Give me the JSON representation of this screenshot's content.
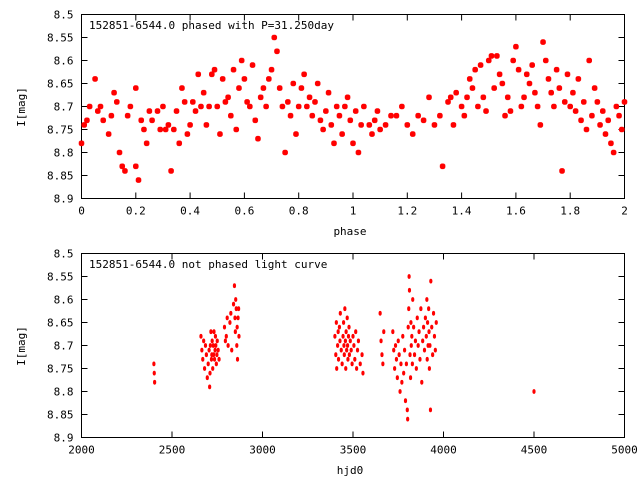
{
  "chart_data": [
    {
      "type": "scatter",
      "title": "152851-6544.0 phased with P=31.250day",
      "xlabel": "phase",
      "ylabel": "I[mag]",
      "xlim": [
        0,
        2
      ],
      "ylim": [
        8.5,
        8.9
      ],
      "y_inverted": true,
      "grid": false,
      "marker_color": "#ff0000",
      "xticks": [
        "0",
        "0.2",
        "0.4",
        "0.6",
        "0.8",
        "1",
        "1.2",
        "1.4",
        "1.6",
        "1.8",
        "2"
      ],
      "yticks": [
        "8.5",
        "8.55",
        "8.6",
        "8.65",
        "8.7",
        "8.75",
        "8.8",
        "8.85",
        "8.9"
      ],
      "points": [
        [
          0.0,
          8.78
        ],
        [
          0.01,
          8.74
        ],
        [
          0.02,
          8.73
        ],
        [
          0.03,
          8.7
        ],
        [
          0.05,
          8.64
        ],
        [
          0.06,
          8.71
        ],
        [
          0.07,
          8.7
        ],
        [
          0.08,
          8.73
        ],
        [
          0.1,
          8.76
        ],
        [
          0.11,
          8.72
        ],
        [
          0.12,
          8.67
        ],
        [
          0.13,
          8.69
        ],
        [
          0.14,
          8.8
        ],
        [
          0.15,
          8.83
        ],
        [
          0.16,
          8.84
        ],
        [
          0.17,
          8.72
        ],
        [
          0.18,
          8.7
        ],
        [
          0.2,
          8.66
        ],
        [
          0.2,
          8.83
        ],
        [
          0.21,
          8.86
        ],
        [
          0.22,
          8.73
        ],
        [
          0.23,
          8.75
        ],
        [
          0.24,
          8.78
        ],
        [
          0.25,
          8.71
        ],
        [
          0.26,
          8.73
        ],
        [
          0.28,
          8.71
        ],
        [
          0.29,
          8.75
        ],
        [
          0.3,
          8.7
        ],
        [
          0.31,
          8.75
        ],
        [
          0.32,
          8.74
        ],
        [
          0.33,
          8.84
        ],
        [
          0.34,
          8.75
        ],
        [
          0.35,
          8.71
        ],
        [
          0.36,
          8.78
        ],
        [
          0.37,
          8.66
        ],
        [
          0.38,
          8.69
        ],
        [
          0.39,
          8.76
        ],
        [
          0.4,
          8.74
        ],
        [
          0.41,
          8.69
        ],
        [
          0.42,
          8.71
        ],
        [
          0.43,
          8.63
        ],
        [
          0.44,
          8.7
        ],
        [
          0.45,
          8.67
        ],
        [
          0.46,
          8.74
        ],
        [
          0.47,
          8.7
        ],
        [
          0.48,
          8.63
        ],
        [
          0.49,
          8.62
        ],
        [
          0.5,
          8.7
        ],
        [
          0.51,
          8.76
        ],
        [
          0.52,
          8.64
        ],
        [
          0.53,
          8.69
        ],
        [
          0.54,
          8.68
        ],
        [
          0.55,
          8.72
        ],
        [
          0.56,
          8.62
        ],
        [
          0.57,
          8.75
        ],
        [
          0.58,
          8.66
        ],
        [
          0.59,
          8.6
        ],
        [
          0.6,
          8.64
        ],
        [
          0.61,
          8.69
        ],
        [
          0.62,
          8.7
        ],
        [
          0.63,
          8.61
        ],
        [
          0.64,
          8.73
        ],
        [
          0.65,
          8.77
        ],
        [
          0.66,
          8.68
        ],
        [
          0.67,
          8.66
        ],
        [
          0.68,
          8.7
        ],
        [
          0.69,
          8.64
        ],
        [
          0.7,
          8.62
        ],
        [
          0.71,
          8.55
        ],
        [
          0.72,
          8.58
        ],
        [
          0.73,
          8.66
        ],
        [
          0.74,
          8.7
        ],
        [
          0.75,
          8.8
        ],
        [
          0.76,
          8.69
        ],
        [
          0.77,
          8.72
        ],
        [
          0.78,
          8.65
        ],
        [
          0.79,
          8.76
        ],
        [
          0.8,
          8.7
        ],
        [
          0.81,
          8.66
        ],
        [
          0.82,
          8.63
        ],
        [
          0.83,
          8.7
        ],
        [
          0.84,
          8.68
        ],
        [
          0.85,
          8.72
        ],
        [
          0.86,
          8.69
        ],
        [
          0.87,
          8.65
        ],
        [
          0.88,
          8.73
        ],
        [
          0.89,
          8.75
        ],
        [
          0.9,
          8.71
        ],
        [
          0.91,
          8.67
        ],
        [
          0.92,
          8.74
        ],
        [
          0.93,
          8.78
        ],
        [
          0.94,
          8.7
        ],
        [
          0.95,
          8.72
        ],
        [
          0.96,
          8.76
        ],
        [
          0.97,
          8.7
        ],
        [
          0.98,
          8.68
        ],
        [
          0.99,
          8.73
        ],
        [
          1.0,
          8.78
        ],
        [
          1.01,
          8.71
        ],
        [
          1.02,
          8.8
        ],
        [
          1.03,
          8.74
        ],
        [
          1.04,
          8.7
        ],
        [
          1.06,
          8.74
        ],
        [
          1.07,
          8.76
        ],
        [
          1.08,
          8.73
        ],
        [
          1.09,
          8.71
        ],
        [
          1.1,
          8.75
        ],
        [
          1.12,
          8.74
        ],
        [
          1.14,
          8.72
        ],
        [
          1.16,
          8.72
        ],
        [
          1.18,
          8.7
        ],
        [
          1.2,
          8.74
        ],
        [
          1.22,
          8.76
        ],
        [
          1.24,
          8.72
        ],
        [
          1.26,
          8.73
        ],
        [
          1.28,
          8.68
        ],
        [
          1.3,
          8.74
        ],
        [
          1.32,
          8.72
        ],
        [
          1.33,
          8.83
        ],
        [
          1.35,
          8.69
        ],
        [
          1.36,
          8.68
        ],
        [
          1.37,
          8.74
        ],
        [
          1.38,
          8.67
        ],
        [
          1.4,
          8.7
        ],
        [
          1.41,
          8.72
        ],
        [
          1.42,
          8.68
        ],
        [
          1.43,
          8.64
        ],
        [
          1.44,
          8.66
        ],
        [
          1.45,
          8.62
        ],
        [
          1.46,
          8.7
        ],
        [
          1.47,
          8.61
        ],
        [
          1.48,
          8.68
        ],
        [
          1.49,
          8.71
        ],
        [
          1.5,
          8.6
        ],
        [
          1.51,
          8.59
        ],
        [
          1.52,
          8.66
        ],
        [
          1.53,
          8.59
        ],
        [
          1.54,
          8.63
        ],
        [
          1.55,
          8.65
        ],
        [
          1.56,
          8.72
        ],
        [
          1.57,
          8.68
        ],
        [
          1.58,
          8.71
        ],
        [
          1.59,
          8.6
        ],
        [
          1.6,
          8.57
        ],
        [
          1.61,
          8.62
        ],
        [
          1.62,
          8.7
        ],
        [
          1.63,
          8.68
        ],
        [
          1.64,
          8.63
        ],
        [
          1.65,
          8.65
        ],
        [
          1.66,
          8.61
        ],
        [
          1.67,
          8.67
        ],
        [
          1.68,
          8.7
        ],
        [
          1.69,
          8.74
        ],
        [
          1.7,
          8.56
        ],
        [
          1.71,
          8.6
        ],
        [
          1.72,
          8.64
        ],
        [
          1.73,
          8.67
        ],
        [
          1.74,
          8.7
        ],
        [
          1.75,
          8.62
        ],
        [
          1.76,
          8.66
        ],
        [
          1.77,
          8.84
        ],
        [
          1.78,
          8.69
        ],
        [
          1.79,
          8.63
        ],
        [
          1.8,
          8.7
        ],
        [
          1.81,
          8.67
        ],
        [
          1.82,
          8.71
        ],
        [
          1.83,
          8.64
        ],
        [
          1.84,
          8.73
        ],
        [
          1.85,
          8.69
        ],
        [
          1.86,
          8.75
        ],
        [
          1.87,
          8.6
        ],
        [
          1.88,
          8.72
        ],
        [
          1.89,
          8.66
        ],
        [
          1.9,
          8.69
        ],
        [
          1.91,
          8.74
        ],
        [
          1.92,
          8.71
        ],
        [
          1.93,
          8.76
        ],
        [
          1.94,
          8.73
        ],
        [
          1.95,
          8.78
        ],
        [
          1.96,
          8.8
        ],
        [
          1.97,
          8.7
        ],
        [
          1.98,
          8.72
        ],
        [
          1.99,
          8.75
        ],
        [
          2.0,
          8.69
        ]
      ]
    },
    {
      "type": "scatter",
      "title": "152851-6544.0 not phased light curve",
      "xlabel": "hjd0",
      "ylabel": "I[mag]",
      "xlim": [
        2000,
        5000
      ],
      "ylim": [
        8.5,
        8.9
      ],
      "y_inverted": true,
      "grid": false,
      "marker_color": "#ff0000",
      "xticks": [
        "2000",
        "2500",
        "3000",
        "3500",
        "4000",
        "4500",
        "5000"
      ],
      "yticks": [
        "8.5",
        "8.55",
        "8.6",
        "8.65",
        "8.7",
        "8.75",
        "8.8",
        "8.85",
        "8.9"
      ],
      "points": [
        [
          2400,
          8.74
        ],
        [
          2402,
          8.76
        ],
        [
          2404,
          8.78
        ],
        [
          2660,
          8.68
        ],
        [
          2665,
          8.71
        ],
        [
          2670,
          8.73
        ],
        [
          2675,
          8.69
        ],
        [
          2680,
          8.75
        ],
        [
          2685,
          8.7
        ],
        [
          2690,
          8.72
        ],
        [
          2695,
          8.77
        ],
        [
          2700,
          8.74
        ],
        [
          2705,
          8.71
        ],
        [
          2708,
          8.79
        ],
        [
          2710,
          8.76
        ],
        [
          2712,
          8.7
        ],
        [
          2715,
          8.67
        ],
        [
          2718,
          8.73
        ],
        [
          2720,
          8.72
        ],
        [
          2722,
          8.69
        ],
        [
          2725,
          8.75
        ],
        [
          2728,
          8.7
        ],
        [
          2730,
          8.72
        ],
        [
          2732,
          8.67
        ],
        [
          2735,
          8.73
        ],
        [
          2738,
          8.71
        ],
        [
          2740,
          8.68
        ],
        [
          2742,
          8.7
        ],
        [
          2745,
          8.74
        ],
        [
          2748,
          8.72
        ],
        [
          2750,
          8.69
        ],
        [
          2755,
          8.71
        ],
        [
          2760,
          8.73
        ],
        [
          2790,
          8.66
        ],
        [
          2795,
          8.69
        ],
        [
          2800,
          8.68
        ],
        [
          2805,
          8.64
        ],
        [
          2810,
          8.7
        ],
        [
          2820,
          8.65
        ],
        [
          2825,
          8.63
        ],
        [
          2830,
          8.71
        ],
        [
          2840,
          8.61
        ],
        [
          2845,
          8.57
        ],
        [
          2848,
          8.64
        ],
        [
          2850,
          8.67
        ],
        [
          2852,
          8.6
        ],
        [
          2855,
          8.62
        ],
        [
          2858,
          8.7
        ],
        [
          2860,
          8.66
        ],
        [
          2862,
          8.73
        ],
        [
          2865,
          8.64
        ],
        [
          2868,
          8.62
        ],
        [
          2870,
          8.68
        ],
        [
          3400,
          8.68
        ],
        [
          3405,
          8.72
        ],
        [
          3408,
          8.65
        ],
        [
          3410,
          8.75
        ],
        [
          3415,
          8.7
        ],
        [
          3418,
          8.67
        ],
        [
          3420,
          8.73
        ],
        [
          3425,
          8.66
        ],
        [
          3428,
          8.69
        ],
        [
          3430,
          8.63
        ],
        [
          3435,
          8.71
        ],
        [
          3440,
          8.74
        ],
        [
          3445,
          8.68
        ],
        [
          3448,
          8.65
        ],
        [
          3450,
          8.7
        ],
        [
          3452,
          8.72
        ],
        [
          3455,
          8.62
        ],
        [
          3458,
          8.69
        ],
        [
          3460,
          8.75
        ],
        [
          3462,
          8.67
        ],
        [
          3465,
          8.71
        ],
        [
          3468,
          8.64
        ],
        [
          3470,
          8.7
        ],
        [
          3472,
          8.73
        ],
        [
          3475,
          8.68
        ],
        [
          3478,
          8.66
        ],
        [
          3480,
          8.72
        ],
        [
          3485,
          8.69
        ],
        [
          3490,
          8.71
        ],
        [
          3495,
          8.74
        ],
        [
          3500,
          8.68
        ],
        [
          3505,
          8.7
        ],
        [
          3510,
          8.73
        ],
        [
          3515,
          8.67
        ],
        [
          3520,
          8.75
        ],
        [
          3525,
          8.71
        ],
        [
          3530,
          8.69
        ],
        [
          3540,
          8.74
        ],
        [
          3550,
          8.72
        ],
        [
          3555,
          8.76
        ],
        [
          3650,
          8.63
        ],
        [
          3655,
          8.69
        ],
        [
          3660,
          8.72
        ],
        [
          3665,
          8.74
        ],
        [
          3670,
          8.67
        ],
        [
          3720,
          8.67
        ],
        [
          3725,
          8.71
        ],
        [
          3730,
          8.75
        ],
        [
          3735,
          8.7
        ],
        [
          3740,
          8.73
        ],
        [
          3745,
          8.77
        ],
        [
          3750,
          8.69
        ],
        [
          3755,
          8.72
        ],
        [
          3760,
          8.8
        ],
        [
          3765,
          8.74
        ],
        [
          3770,
          8.78
        ],
        [
          3775,
          8.68
        ],
        [
          3780,
          8.76
        ],
        [
          3785,
          8.71
        ],
        [
          3790,
          8.82
        ],
        [
          3795,
          8.74
        ],
        [
          3800,
          8.84
        ],
        [
          3802,
          8.86
        ],
        [
          3805,
          8.66
        ],
        [
          3808,
          8.62
        ],
        [
          3810,
          8.55
        ],
        [
          3812,
          8.58
        ],
        [
          3815,
          8.72
        ],
        [
          3818,
          8.77
        ],
        [
          3820,
          8.65
        ],
        [
          3822,
          8.7
        ],
        [
          3825,
          8.68
        ],
        [
          3828,
          8.74
        ],
        [
          3830,
          8.6
        ],
        [
          3835,
          8.66
        ],
        [
          3840,
          8.72
        ],
        [
          3845,
          8.69
        ],
        [
          3850,
          8.75
        ],
        [
          3855,
          8.64
        ],
        [
          3860,
          8.7
        ],
        [
          3865,
          8.67
        ],
        [
          3870,
          8.73
        ],
        [
          3875,
          8.62
        ],
        [
          3880,
          8.78
        ],
        [
          3885,
          8.69
        ],
        [
          3890,
          8.66
        ],
        [
          3895,
          8.71
        ],
        [
          3900,
          8.64
        ],
        [
          3905,
          8.68
        ],
        [
          3908,
          8.6
        ],
        [
          3910,
          8.73
        ],
        [
          3912,
          8.65
        ],
        [
          3915,
          8.7
        ],
        [
          3918,
          8.62
        ],
        [
          3920,
          8.67
        ],
        [
          3922,
          8.75
        ],
        [
          3925,
          8.7
        ],
        [
          3928,
          8.84
        ],
        [
          3930,
          8.56
        ],
        [
          3935,
          8.66
        ],
        [
          3940,
          8.72
        ],
        [
          3945,
          8.63
        ],
        [
          3950,
          8.68
        ],
        [
          3955,
          8.71
        ],
        [
          3960,
          8.65
        ],
        [
          4500,
          8.8
        ]
      ]
    }
  ]
}
